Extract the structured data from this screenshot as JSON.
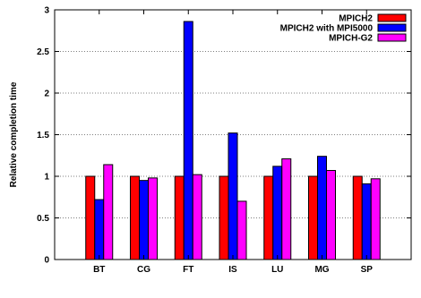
{
  "chart_data": {
    "type": "bar",
    "categories": [
      "BT",
      "CG",
      "FT",
      "IS",
      "LU",
      "MG",
      "SP"
    ],
    "series": [
      {
        "name": "MPICH2",
        "values": [
          1.0,
          1.0,
          1.0,
          1.0,
          1.0,
          1.0,
          1.0
        ],
        "color": "#ff0000"
      },
      {
        "name": "MPICH2 with MPI5000",
        "values": [
          0.72,
          0.95,
          2.86,
          1.52,
          1.12,
          1.24,
          0.91
        ],
        "color": "#0000ff"
      },
      {
        "name": "MPICH-G2",
        "values": [
          1.14,
          0.98,
          1.02,
          0.7,
          1.21,
          1.07,
          0.97
        ],
        "color": "#ff00ff"
      }
    ],
    "title": "",
    "xlabel": "",
    "ylabel": "Relative completion time",
    "ylim": [
      0,
      3
    ],
    "yticks": [
      0,
      0.5,
      1,
      1.5,
      2,
      2.5,
      3
    ],
    "ytick_labels": [
      "0",
      "0.5",
      "1",
      "1.5",
      "2",
      "2.5",
      "3"
    ],
    "grid": true,
    "legend_position": "top-right"
  }
}
